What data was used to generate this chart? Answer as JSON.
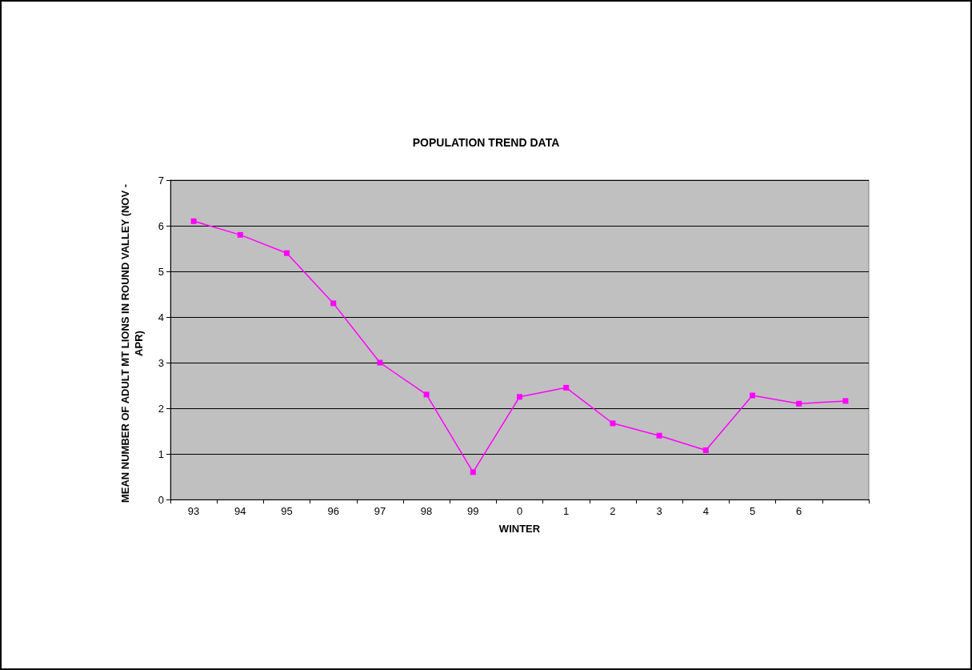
{
  "chart_data": {
    "type": "line",
    "title": "POPULATION TREND DATA",
    "xlabel": "WINTER",
    "ylabel": "MEAN NUMBER OF ADULT MT LIONS IN ROUND VALLEY (NOV - APR)",
    "categories": [
      "93",
      "94",
      "95",
      "96",
      "97",
      "98",
      "99",
      "0",
      "1",
      "2",
      "3",
      "4",
      "5",
      "6",
      null
    ],
    "series": [
      {
        "color": "#ff00ff",
        "values": [
          6.1,
          5.8,
          5.4,
          4.3,
          3.0,
          2.3,
          0.6,
          2.25,
          2.45,
          1.67,
          1.4,
          1.08,
          2.28,
          2.1,
          2.16
        ]
      }
    ],
    "ylim": [
      0,
      7
    ],
    "yticks": [
      0,
      1,
      2,
      3,
      4,
      5,
      6,
      7
    ],
    "grid": "y",
    "marker": "square",
    "line_style": "solid"
  }
}
